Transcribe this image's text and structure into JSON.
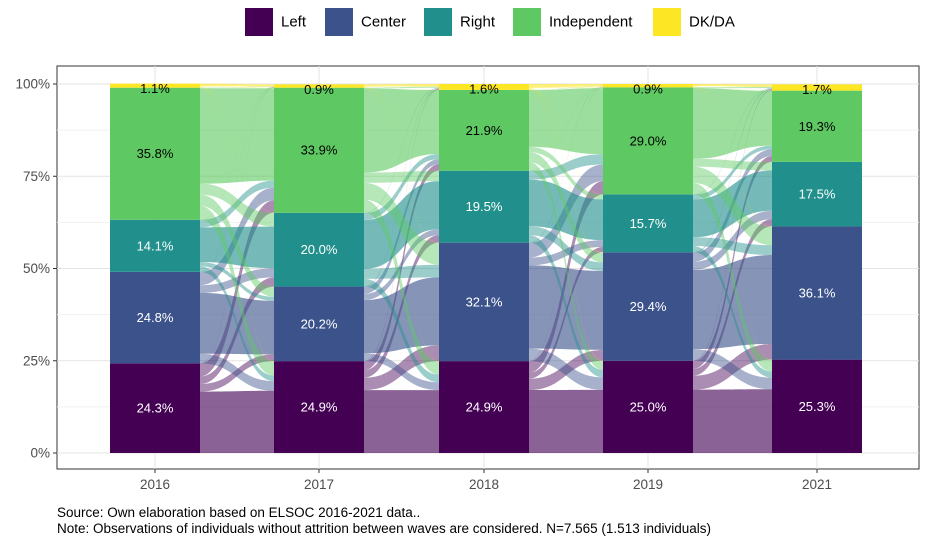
{
  "chart_data": {
    "type": "alluvial",
    "categories": [
      "2016",
      "2017",
      "2018",
      "2019",
      "2021"
    ],
    "ylim": [
      0,
      100
    ],
    "y_ticks": [
      "0%",
      "25%",
      "50%",
      "75%",
      "100%"
    ],
    "grid": true,
    "legend_position": "top",
    "series": [
      {
        "name": "Left",
        "color": "#440154",
        "values": [
          24.3,
          24.9,
          24.9,
          25.0,
          25.3
        ],
        "labels": [
          "24.3%",
          "24.9%",
          "24.9%",
          "25.0%",
          "25.3%"
        ]
      },
      {
        "name": "Center",
        "color": "#3b528b",
        "values": [
          24.8,
          20.2,
          32.1,
          29.4,
          36.1
        ],
        "labels": [
          "24.8%",
          "20.2%",
          "32.1%",
          "29.4%",
          "36.1%"
        ]
      },
      {
        "name": "Right",
        "color": "#21908c",
        "values": [
          14.1,
          20.0,
          19.5,
          15.7,
          17.5
        ],
        "labels": [
          "14.1%",
          "20.0%",
          "19.5%",
          "15.7%",
          "17.5%"
        ]
      },
      {
        "name": "Independent",
        "color": "#5ec962",
        "values": [
          35.8,
          33.9,
          21.9,
          29.0,
          19.3
        ],
        "labels": [
          "35.8%",
          "33.9%",
          "21.9%",
          "29.0%",
          "19.3%"
        ]
      },
      {
        "name": "DK/DA",
        "color": "#fde725",
        "values": [
          1.1,
          0.9,
          1.6,
          0.9,
          1.7
        ],
        "labels": [
          "1.1%",
          "0.9%",
          "1.6%",
          "0.9%",
          "1.7%"
        ]
      }
    ],
    "caption_source": "Source: Own elaboration based on ELSOC 2016-2021 data..",
    "caption_note": "Note: Observations of individuals without attrition between waves are considered. N=7.565 (1.513 individuals)"
  }
}
